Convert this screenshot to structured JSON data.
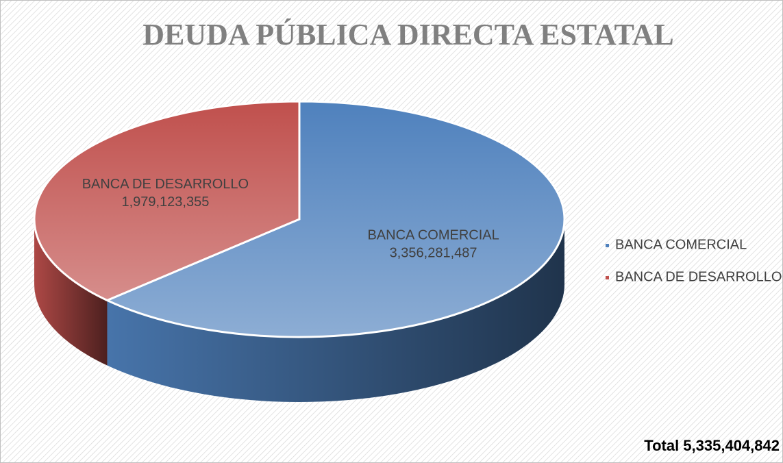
{
  "chart_data": {
    "type": "pie",
    "title": "DEUDA PÚBLICA DIRECTA ESTATAL",
    "categories": [
      "BANCA COMERCIAL",
      "BANCA DE DESARROLLO"
    ],
    "values": [
      3356281487,
      1979123355
    ],
    "value_labels": [
      "3,356,281,487",
      "1,979,123,355"
    ],
    "colors": [
      "#4f81bd",
      "#c0504d"
    ],
    "legend": "right",
    "annotation": "Total 5,335,404,842"
  }
}
